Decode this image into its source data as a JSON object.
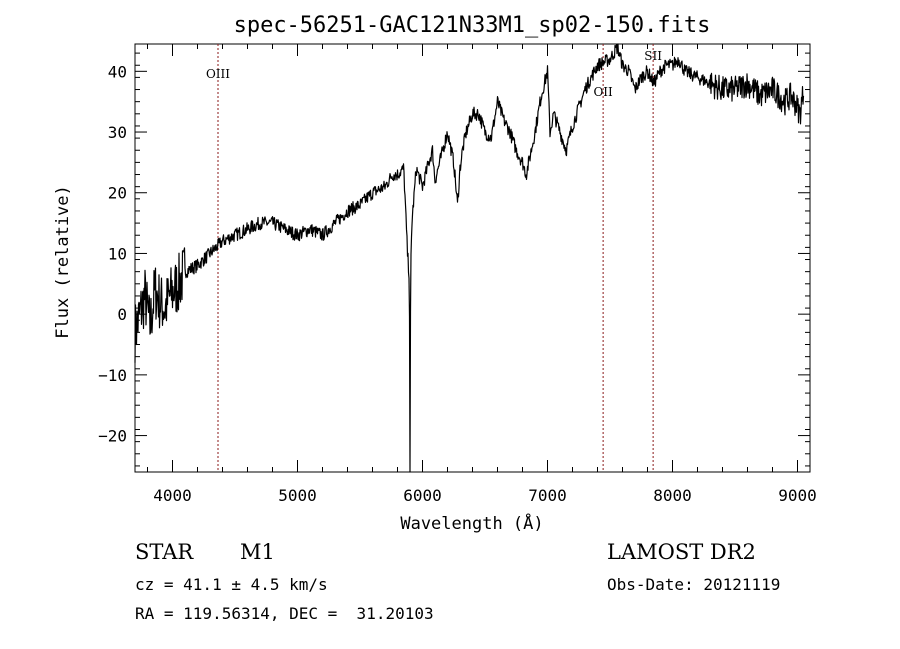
{
  "chart_data": {
    "type": "line",
    "title": "spec-56251-GAC121N33M1_sp02-150.fits",
    "xlabel": "Wavelength (Å)",
    "ylabel": "Flux (relative)",
    "xlim": [
      3700,
      9100
    ],
    "ylim": [
      -26,
      44.5
    ],
    "xticks": [
      4000,
      5000,
      6000,
      7000,
      8000,
      9000
    ],
    "yticks": [
      -20,
      -10,
      0,
      10,
      20,
      30,
      40
    ],
    "grid": false,
    "line_color": "#000000",
    "marker_color": "#8b1a1a",
    "series": [
      {
        "x": [
          3700,
          3740,
          3780,
          3820,
          3860,
          3900,
          3940,
          3980,
          4050,
          4100,
          4200,
          4300,
          4400,
          4500,
          4600,
          4700,
          4800,
          4900,
          5000,
          5100,
          5200,
          5300,
          5400,
          5500,
          5600,
          5700,
          5760,
          5800,
          5850,
          5880,
          5895,
          5900,
          5905,
          5915,
          5950,
          6000,
          6050,
          6080,
          6100,
          6150,
          6200,
          6250,
          6280,
          6300,
          6320,
          6350,
          6400,
          6450,
          6500,
          6550,
          6600,
          6650,
          6700,
          6750,
          6800,
          6830,
          6900,
          6950,
          7000,
          7020,
          7050,
          7100,
          7150,
          7200,
          7300,
          7400,
          7500,
          7560,
          7600,
          7650,
          7700,
          7750,
          7800,
          7850,
          7900,
          7950,
          8000,
          8050,
          8100,
          8200,
          8300,
          8400,
          8500,
          8600,
          8700,
          8800,
          8900,
          8950,
          9000,
          9020,
          9050
        ],
        "y": [
          -3,
          0,
          3,
          -2,
          4,
          2,
          1,
          3,
          5,
          7,
          8,
          10,
          12,
          13,
          14,
          15,
          15,
          14,
          13,
          14,
          13,
          15,
          17,
          18,
          20,
          21,
          23,
          23,
          24,
          10,
          6,
          -26,
          7,
          15,
          24,
          21,
          25,
          27,
          22,
          26,
          30,
          25,
          18,
          24,
          27,
          30,
          33,
          33,
          30,
          29,
          35,
          32,
          30,
          27,
          25,
          23,
          30,
          36,
          40,
          30,
          33,
          30,
          27,
          31,
          37,
          41,
          42,
          44,
          41,
          40,
          37,
          39,
          40,
          38,
          40,
          41,
          41,
          42,
          40,
          39,
          38,
          37,
          37,
          38,
          36,
          37,
          35,
          36,
          34,
          33,
          37
        ]
      }
    ],
    "lines": [
      {
        "label": "OIII",
        "x": 4364
      },
      {
        "label": "OII",
        "x": 7445
      },
      {
        "label": "SII",
        "x": 7845
      }
    ]
  },
  "info": {
    "object_class": "STAR",
    "subclass": "M1",
    "survey": "LAMOST DR2",
    "cz": "cz = 41.1 ± 4.5 km/s",
    "obs_date": "Obs-Date: 20121119",
    "coords": "RA = 119.56314, DEC =  31.20103"
  }
}
